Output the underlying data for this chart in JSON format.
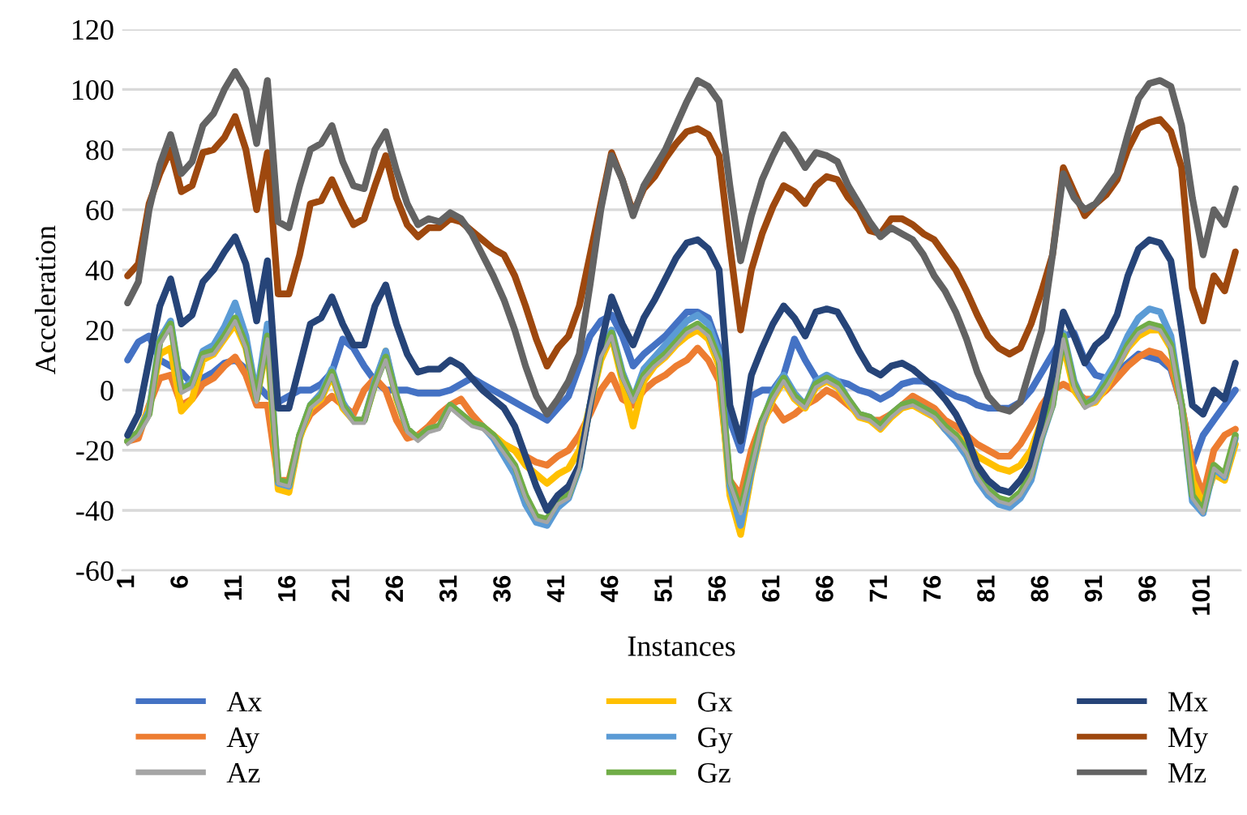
{
  "chart_data": {
    "type": "line",
    "xlabel": "Instances",
    "ylabel": "Acceleration",
    "categories": [
      "1",
      null,
      null,
      null,
      null,
      "6",
      null,
      null,
      null,
      null,
      "11",
      null,
      null,
      null,
      null,
      "16",
      null,
      null,
      null,
      null,
      "21",
      null,
      null,
      null,
      null,
      "26",
      null,
      null,
      null,
      null,
      "31",
      null,
      null,
      null,
      null,
      "36",
      null,
      null,
      null,
      null,
      "41",
      null,
      null,
      null,
      null,
      "46",
      null,
      null,
      null,
      null,
      "51",
      null,
      null,
      null,
      null,
      "56",
      null,
      null,
      null,
      null,
      "61",
      null,
      null,
      null,
      null,
      "66",
      null,
      null,
      null,
      null,
      "71",
      null,
      null,
      null,
      null,
      "76",
      null,
      null,
      null,
      null,
      "81",
      null,
      null,
      null,
      null,
      "86",
      null,
      null,
      null,
      null,
      "91",
      null,
      null,
      null,
      null,
      "96",
      null,
      null,
      null,
      null,
      "101",
      null,
      null,
      null
    ],
    "ylim": [
      -60,
      120
    ],
    "yticks": [
      -60,
      -40,
      -20,
      0,
      20,
      40,
      60,
      80,
      100,
      120
    ],
    "grid": "y",
    "legend": "bottom",
    "series": [
      {
        "name": "Ax",
        "color": "#4472c4",
        "values": [
          10,
          16,
          18,
          10,
          8,
          6,
          2,
          4,
          6,
          9,
          10,
          7,
          2,
          -2,
          -4,
          -2,
          0,
          0,
          2,
          6,
          17,
          14,
          8,
          3,
          0,
          0,
          0,
          -1,
          -1,
          -1,
          0,
          2,
          4,
          2,
          0,
          -2,
          -4,
          -6,
          -8,
          -10,
          -6,
          -2,
          8,
          18,
          23,
          25,
          18,
          8,
          12,
          15,
          18,
          22,
          26,
          26,
          24,
          14,
          -10,
          -20,
          -2,
          0,
          0,
          5,
          17,
          10,
          4,
          3,
          3,
          2,
          0,
          -1,
          -3,
          -1,
          2,
          3,
          3,
          2,
          0,
          -2,
          -3,
          -5,
          -6,
          -6,
          -6,
          -4,
          0,
          6,
          12,
          18,
          19,
          10,
          5,
          4,
          6,
          9,
          12,
          11,
          10,
          7,
          -5,
          -25,
          -15,
          -10,
          -5,
          0
        ]
      },
      {
        "name": "Ay",
        "color": "#ed7d31",
        "values": [
          -17,
          -16,
          -5,
          4,
          5,
          -5,
          -3,
          2,
          4,
          8,
          11,
          5,
          -5,
          -5,
          -30,
          -30,
          -15,
          -8,
          -5,
          -2,
          -5,
          -8,
          0,
          4,
          0,
          -10,
          -16,
          -15,
          -12,
          -8,
          -5,
          -3,
          -8,
          -12,
          -15,
          -18,
          -20,
          -22,
          -24,
          -25,
          -22,
          -20,
          -15,
          -8,
          0,
          5,
          -3,
          -5,
          0,
          3,
          5,
          8,
          10,
          14,
          10,
          3,
          -30,
          -35,
          -20,
          -10,
          -5,
          -10,
          -8,
          -5,
          -3,
          0,
          -2,
          -5,
          -8,
          -10,
          -10,
          -8,
          -5,
          -2,
          -4,
          -6,
          -10,
          -12,
          -15,
          -18,
          -20,
          -22,
          -22,
          -18,
          -12,
          -5,
          0,
          2,
          0,
          -3,
          -3,
          0,
          4,
          8,
          11,
          13,
          12,
          8,
          -5,
          -25,
          -35,
          -20,
          -15,
          -13
        ]
      },
      {
        "name": "Az",
        "color": "#a5a5a5",
        "values": [
          -18,
          -15,
          -9,
          15,
          21,
          -1,
          1,
          11,
          12,
          17,
          23,
          14,
          -4,
          17,
          -31,
          -32,
          -16,
          -6,
          -3,
          5,
          -6,
          -11,
          -11,
          1,
          10,
          -3,
          -14,
          -17,
          -14,
          -13,
          -6,
          -9,
          -12,
          -13,
          -16,
          -21,
          -26,
          -36,
          -43,
          -44,
          -38,
          -36,
          -26,
          -6,
          11,
          18,
          4,
          -4,
          4,
          8,
          11,
          15,
          19,
          21,
          18,
          9,
          -31,
          -41,
          -26,
          -11,
          -3,
          3,
          -3,
          -6,
          1,
          3,
          1,
          -4,
          -9,
          -10,
          -13,
          -9,
          -6,
          -5,
          -7,
          -9,
          -13,
          -16,
          -21,
          -29,
          -34,
          -37,
          -38,
          -35,
          -29,
          -16,
          -6,
          17,
          1,
          -6,
          -4,
          1,
          7,
          14,
          19,
          21,
          20,
          14,
          -6,
          -36,
          -41,
          -26,
          -29,
          -16
        ]
      },
      {
        "name": "Gx",
        "color": "#ffc000",
        "values": [
          -17,
          -14,
          -6,
          12,
          14,
          -7,
          -3,
          10,
          12,
          17,
          22,
          14,
          -3,
          16,
          -33,
          -34,
          -16,
          -6,
          -3,
          5,
          -6,
          -10,
          -10,
          2,
          13,
          -3,
          -13,
          -16,
          -13,
          -12,
          -5,
          -8,
          -11,
          -12,
          -15,
          -18,
          -20,
          -25,
          -28,
          -31,
          -28,
          -26,
          -20,
          -5,
          10,
          18,
          3,
          -12,
          3,
          8,
          11,
          15,
          18,
          20,
          17,
          8,
          -35,
          -48,
          -28,
          -12,
          -3,
          3,
          -3,
          -6,
          1,
          3,
          1,
          -4,
          -9,
          -10,
          -13,
          -9,
          -6,
          -5,
          -7,
          -9,
          -13,
          -15,
          -18,
          -22,
          -24,
          -26,
          -27,
          -25,
          -20,
          -10,
          -2,
          15,
          0,
          -5,
          -4,
          1,
          8,
          14,
          18,
          20,
          20,
          14,
          -5,
          -30,
          -38,
          -28,
          -30,
          -18
        ]
      },
      {
        "name": "Gy",
        "color": "#5b9bd5",
        "values": [
          -17,
          -14,
          -7,
          17,
          23,
          0,
          3,
          13,
          15,
          21,
          29,
          18,
          -2,
          22,
          -31,
          -32,
          -15,
          -5,
          -1,
          7,
          -4,
          -10,
          -10,
          3,
          13,
          -2,
          -13,
          -16,
          -13,
          -12,
          -5,
          -8,
          -11,
          -12,
          -16,
          -22,
          -28,
          -38,
          -44,
          -45,
          -39,
          -36,
          -26,
          -5,
          13,
          20,
          6,
          -3,
          7,
          11,
          15,
          19,
          23,
          25,
          22,
          12,
          -32,
          -45,
          -27,
          -11,
          -1,
          5,
          -1,
          -5,
          3,
          5,
          3,
          -3,
          -8,
          -9,
          -12,
          -8,
          -5,
          -4,
          -6,
          -8,
          -13,
          -17,
          -22,
          -30,
          -35,
          -38,
          -39,
          -36,
          -30,
          -16,
          -5,
          19,
          3,
          -5,
          -2,
          4,
          10,
          18,
          24,
          27,
          26,
          18,
          -5,
          -37,
          -41,
          -26,
          -29,
          -16
        ]
      },
      {
        "name": "Gz",
        "color": "#70ad47",
        "values": [
          -17,
          -14,
          -8,
          16,
          22,
          0,
          2,
          12,
          13,
          18,
          24,
          15,
          -3,
          18,
          -30,
          -31,
          -15,
          -5,
          -2,
          6,
          -5,
          -10,
          -10,
          2,
          11,
          -2,
          -13,
          -16,
          -13,
          -12,
          -5,
          -8,
          -11,
          -12,
          -15,
          -20,
          -25,
          -35,
          -42,
          -43,
          -37,
          -35,
          -25,
          -5,
          12,
          19,
          5,
          -3,
          5,
          9,
          12,
          16,
          20,
          22,
          19,
          10,
          -30,
          -40,
          -25,
          -10,
          -2,
          4,
          -2,
          -5,
          2,
          4,
          2,
          -3,
          -8,
          -9,
          -12,
          -8,
          -5,
          -4,
          -6,
          -8,
          -12,
          -15,
          -20,
          -28,
          -33,
          -36,
          -37,
          -34,
          -28,
          -15,
          -5,
          18,
          2,
          -5,
          -3,
          2,
          8,
          15,
          20,
          22,
          21,
          15,
          -5,
          -35,
          -40,
          -25,
          -28,
          -15
        ]
      },
      {
        "name": "Mx",
        "color": "#264478",
        "values": [
          -15,
          -8,
          10,
          28,
          37,
          22,
          25,
          36,
          40,
          46,
          51,
          42,
          23,
          43,
          -6,
          -6,
          8,
          22,
          24,
          31,
          22,
          15,
          15,
          28,
          35,
          22,
          12,
          6,
          7,
          7,
          10,
          8,
          4,
          0,
          -3,
          -6,
          -12,
          -22,
          -32,
          -40,
          -35,
          -32,
          -25,
          -5,
          15,
          31,
          22,
          15,
          24,
          30,
          37,
          44,
          49,
          50,
          47,
          40,
          -5,
          -17,
          5,
          14,
          22,
          28,
          24,
          18,
          26,
          27,
          26,
          20,
          13,
          7,
          5,
          8,
          9,
          7,
          4,
          1,
          -3,
          -8,
          -15,
          -25,
          -30,
          -33,
          -34,
          -30,
          -24,
          -10,
          5,
          26,
          18,
          9,
          15,
          18,
          25,
          38,
          47,
          50,
          49,
          43,
          20,
          -5,
          -8,
          0,
          -3,
          9
        ]
      },
      {
        "name": "My",
        "color": "#9e480e",
        "values": [
          38,
          42,
          62,
          72,
          80,
          66,
          68,
          79,
          80,
          84,
          91,
          80,
          60,
          79,
          32,
          32,
          45,
          62,
          63,
          70,
          62,
          55,
          57,
          68,
          78,
          64,
          55,
          51,
          54,
          54,
          57,
          56,
          53,
          50,
          47,
          45,
          38,
          28,
          17,
          8,
          14,
          18,
          28,
          45,
          62,
          79,
          70,
          59,
          67,
          71,
          77,
          82,
          86,
          87,
          85,
          78,
          48,
          20,
          40,
          52,
          61,
          68,
          66,
          62,
          68,
          71,
          70,
          64,
          60,
          53,
          52,
          57,
          57,
          55,
          52,
          50,
          45,
          40,
          33,
          25,
          18,
          14,
          12,
          14,
          22,
          33,
          45,
          74,
          66,
          58,
          62,
          65,
          70,
          80,
          87,
          89,
          90,
          86,
          74,
          34,
          23,
          38,
          33,
          46
        ]
      },
      {
        "name": "Mz",
        "color": "#636363",
        "values": [
          29,
          36,
          60,
          75,
          85,
          72,
          76,
          88,
          92,
          100,
          106,
          100,
          82,
          103,
          56,
          54,
          68,
          80,
          82,
          88,
          76,
          68,
          67,
          80,
          86,
          73,
          62,
          55,
          57,
          56,
          59,
          57,
          52,
          45,
          38,
          30,
          20,
          8,
          -2,
          -8,
          -3,
          3,
          12,
          35,
          60,
          78,
          70,
          58,
          68,
          74,
          80,
          88,
          96,
          103,
          101,
          96,
          68,
          43,
          58,
          70,
          78,
          85,
          80,
          74,
          79,
          78,
          76,
          68,
          62,
          56,
          51,
          54,
          52,
          50,
          45,
          38,
          33,
          26,
          17,
          6,
          -2,
          -6,
          -7,
          -4,
          8,
          20,
          45,
          72,
          64,
          60,
          62,
          67,
          72,
          85,
          97,
          102,
          103,
          101,
          88,
          64,
          45,
          60,
          55,
          67
        ]
      }
    ]
  }
}
